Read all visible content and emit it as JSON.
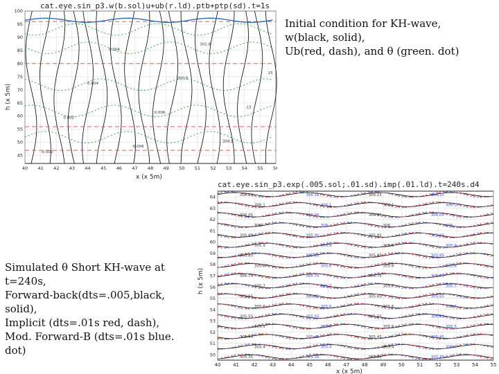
{
  "slide": {
    "caption_top": [
      "Initial condition for KH-wave,",
      "w(black, solid),",
      "Ub(red, dash), and θ (green. dot)"
    ],
    "caption_bottom": [
      "Simulated θ Short KH-wave at",
      "t=240s,",
      "Forward-back(dts=.005,black,",
      "solid),",
      "Implicit (dts=.01s red, dash),",
      "Mod. Forward-B (dts=.01s blue.",
      "dot)"
    ]
  },
  "chart_data": [
    {
      "type": "contour",
      "title": "cat.eye.sin_p3.w(b.sol)u+ub(r.ld).ptb+ptp(sd).t=1s",
      "xlabel": "x (x 5m)",
      "ylabel": "h (x 5m)",
      "xticks": [
        "40",
        "41",
        "42",
        "43",
        "44",
        "45",
        "46",
        "47",
        "48",
        "49",
        "50",
        "51",
        "52",
        "53",
        "54",
        "55",
        "56"
      ],
      "yticks": [
        "45",
        "50",
        "55",
        "60",
        "65",
        "70",
        "75",
        "80",
        "85",
        "90",
        "95",
        "100"
      ],
      "xlim": [
        40,
        56
      ],
      "ylim": [
        42,
        100
      ],
      "series": [
        {
          "color": "#000000",
          "style": "solid",
          "field": "w"
        },
        {
          "color": "#d94040",
          "style": "dash",
          "field": "Ub"
        },
        {
          "color": "#2a9a3a",
          "style": "dot",
          "field": "theta"
        }
      ],
      "contour_labels": [
        "-0.002",
        "0.002",
        "-0.004",
        "0.004",
        "-0.006",
        "0.006",
        "300.8",
        "302.8",
        "304.8",
        "-15",
        "15"
      ]
    },
    {
      "type": "contour",
      "title": "cat.eye.sin_p3.exp(.005.sol;.01.sd).imp(.01.ld).t=240s.d4",
      "xlabel": "x (x 5m)",
      "ylabel": "h (x 5m)",
      "xticks": [
        "40",
        "41",
        "42",
        "43",
        "44",
        "45",
        "46",
        "47",
        "48",
        "49",
        "50",
        "51",
        "52",
        "53",
        "54",
        "55"
      ],
      "yticks": [
        "50",
        "51",
        "52",
        "53",
        "54",
        "55",
        "56",
        "57",
        "58",
        "59",
        "60",
        "61",
        "62",
        "63",
        "64"
      ],
      "xlim": [
        40,
        55
      ],
      "ylim": [
        49.5,
        64.5
      ],
      "levels": [
        "306.15",
        "306.1",
        "306.05",
        "306",
        "305.95",
        "305.9",
        "305.85",
        "305.8",
        "305.75",
        "305.7",
        "305.65",
        "305.6",
        "305.55",
        "305.5",
        "305.45",
        "305.4",
        "305.35"
      ],
      "series": [
        {
          "color": "#000000",
          "style": "solid",
          "name": "Forward-back"
        },
        {
          "color": "#d94040",
          "style": "dash",
          "name": "Implicit"
        },
        {
          "color": "#3050d0",
          "style": "dot",
          "name": "Mod. Forward-B"
        }
      ]
    }
  ]
}
